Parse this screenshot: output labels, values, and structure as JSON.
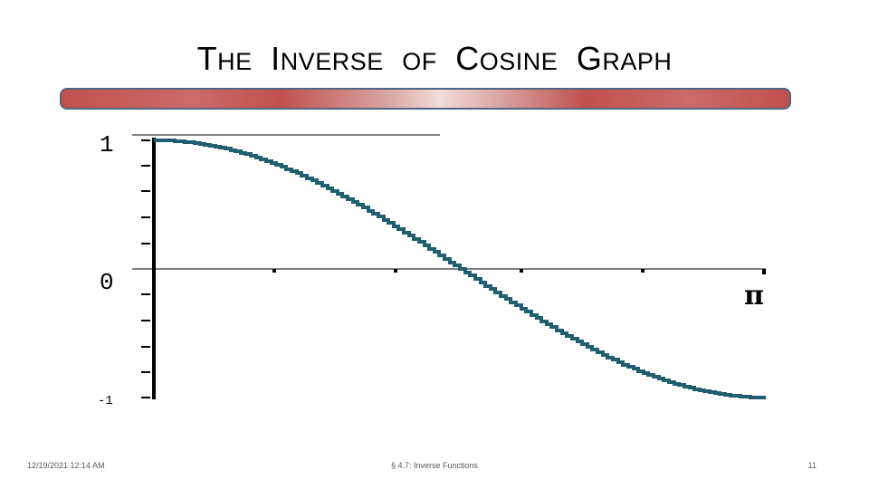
{
  "slide": {
    "title_parts": [
      {
        "cap": "T",
        "rest": "HE"
      },
      {
        "cap": "I",
        "rest": "NVERSE"
      },
      {
        "cap": "",
        "rest": "OF"
      },
      {
        "cap": "C",
        "rest": "OSINE"
      },
      {
        "cap": "G",
        "rest": "RAPH"
      }
    ],
    "colors": {
      "bar_red": "#c0504d",
      "bar_border": "#4f6580",
      "curve": "#1f5f6f"
    }
  },
  "graph": {
    "y_tick_labels": [
      "1",
      "0",
      "-1"
    ],
    "x_end_label": "π",
    "curve": "cos(x)",
    "x_range": [
      0,
      3.1416
    ],
    "y_range": [
      -1,
      1
    ]
  },
  "footer": {
    "date": "12/19/2021 12:14 AM",
    "center": "§ 4.7: Inverse Functions",
    "page": "11"
  }
}
